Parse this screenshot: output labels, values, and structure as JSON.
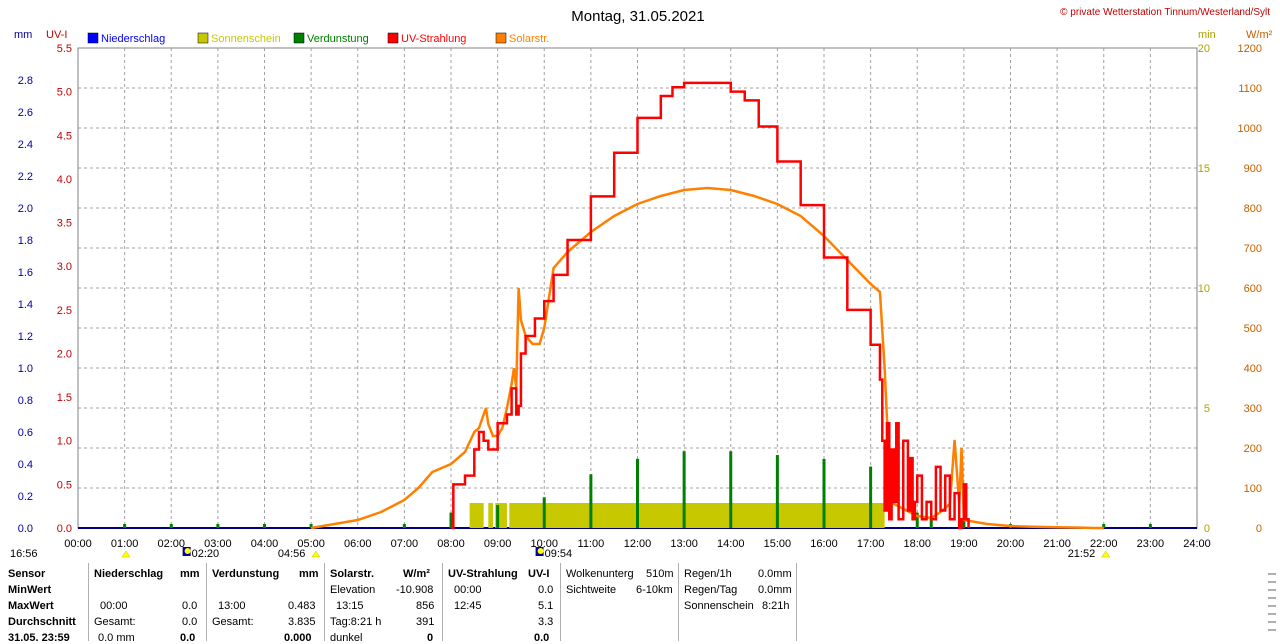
{
  "header": {
    "title": "Montag, 31.05.2021",
    "copyright": "© private Wetterstation Tinnum/Westerland/Sylt"
  },
  "units": {
    "left1": "mm",
    "left2": "UV-I",
    "right1": "min",
    "right2": "W/m²"
  },
  "colors": {
    "precip": "#0000ff",
    "sunshine": "#c8c800",
    "evap": "#008000",
    "uv": "#ff0000",
    "solar": "#ff8000",
    "grid": "#a0a0a0",
    "axis_mm": "#0000a0",
    "axis_uv": "#c00000",
    "axis_min": "#b0a000",
    "axis_wm2": "#c06000"
  },
  "legend": [
    {
      "label": "Niederschlag",
      "color": "#0000ff"
    },
    {
      "label": "Sonnenschein",
      "color": "#c8c800"
    },
    {
      "label": "Verdunstung",
      "color": "#008000"
    },
    {
      "label": "UV-Strahlung",
      "color": "#ff0000"
    },
    {
      "label": "Solarstr.",
      "color": "#ff8000"
    }
  ],
  "chart_data": {
    "type": "line",
    "x_ticks": [
      "00:00",
      "01:00",
      "02:00",
      "03:00",
      "04:00",
      "05:00",
      "06:00",
      "07:00",
      "08:00",
      "09:00",
      "10:00",
      "11:00",
      "12:00",
      "13:00",
      "14:00",
      "15:00",
      "16:00",
      "17:00",
      "18:00",
      "19:00",
      "20:00",
      "21:00",
      "22:00",
      "23:00",
      "24:00"
    ],
    "xlim": [
      0,
      24
    ],
    "axes": {
      "mm": {
        "range": [
          0,
          3.0
        ],
        "ticks": [
          "0.0",
          "0.2",
          "0.4",
          "0.6",
          "0.8",
          "1.0",
          "1.2",
          "1.4",
          "1.6",
          "1.8",
          "2.0",
          "2.2",
          "2.4",
          "2.6",
          "2.8"
        ]
      },
      "uv": {
        "range": [
          0,
          5.5
        ],
        "ticks": [
          "0.0",
          "0.5",
          "1.0",
          "1.5",
          "2.0",
          "2.5",
          "3.0",
          "3.5",
          "4.0",
          "4.5",
          "5.0",
          "5.5"
        ]
      },
      "min": {
        "range": [
          0,
          20
        ],
        "ticks": [
          "0",
          "5",
          "10",
          "15",
          "20"
        ]
      },
      "wm2": {
        "range": [
          0,
          1200
        ],
        "ticks": [
          "0",
          "100",
          "200",
          "300",
          "400",
          "500",
          "600",
          "700",
          "800",
          "900",
          "1000",
          "1100",
          "1200"
        ]
      }
    },
    "series": [
      {
        "name": "Solarstr.",
        "axis": "wm2",
        "x": [
          5.0,
          5.5,
          6.0,
          6.5,
          7.0,
          7.3,
          7.6,
          8.0,
          8.3,
          8.5,
          8.6,
          8.75,
          8.8,
          8.9,
          9.0,
          9.1,
          9.2,
          9.3,
          9.35,
          9.4,
          9.45,
          9.5,
          9.6,
          9.75,
          9.9,
          10.0,
          10.2,
          10.5,
          11.0,
          11.5,
          12.0,
          12.5,
          13.0,
          13.5,
          14.0,
          14.5,
          15.0,
          15.5,
          16.0,
          16.5,
          17.0,
          17.2,
          17.3,
          17.4,
          17.5,
          18.0,
          18.3,
          18.5,
          18.7,
          18.8,
          18.9,
          18.95,
          19.0,
          19.5,
          20.0,
          20.5,
          21.0,
          21.5,
          21.8,
          22.0
        ],
        "y": [
          0,
          10,
          20,
          40,
          70,
          100,
          140,
          160,
          190,
          240,
          250,
          300,
          260,
          230,
          230,
          250,
          300,
          360,
          400,
          350,
          600,
          520,
          480,
          460,
          460,
          500,
          650,
          690,
          740,
          780,
          810,
          830,
          845,
          850,
          845,
          830,
          810,
          780,
          730,
          670,
          610,
          590,
          400,
          150,
          60,
          30,
          25,
          40,
          60,
          220,
          60,
          200,
          20,
          10,
          5,
          3,
          2,
          1,
          0,
          0
        ]
      },
      {
        "name": "UV-Strahlung",
        "axis": "uv",
        "x": [
          8.0,
          8.05,
          8.3,
          8.5,
          8.6,
          8.7,
          8.8,
          9.0,
          9.1,
          9.2,
          9.3,
          9.4,
          9.45,
          9.5,
          9.6,
          9.8,
          10.0,
          10.2,
          10.5,
          11.0,
          11.5,
          12.0,
          12.5,
          12.75,
          13.0,
          13.5,
          13.8,
          14.0,
          14.3,
          14.6,
          15.0,
          15.5,
          16.0,
          16.5,
          17.0,
          17.2,
          17.25,
          17.3,
          17.35,
          17.4,
          17.45,
          17.5,
          17.55,
          17.6,
          17.7,
          17.8,
          17.85,
          17.9,
          17.95,
          18.0,
          18.1,
          18.2,
          18.3,
          18.4,
          18.5,
          18.6,
          18.7,
          18.8,
          18.9,
          18.95,
          19.0,
          19.05,
          19.1
        ],
        "y": [
          0,
          0.5,
          0.6,
          0.9,
          1.1,
          1.0,
          0.9,
          1.2,
          1.2,
          1.3,
          1.6,
          1.3,
          1.4,
          2.0,
          2.2,
          2.4,
          2.6,
          2.9,
          3.3,
          3.8,
          4.3,
          4.7,
          4.95,
          5.05,
          5.1,
          5.1,
          5.1,
          5.0,
          4.9,
          4.6,
          4.2,
          3.7,
          3.1,
          2.5,
          2.1,
          1.7,
          1.0,
          0.2,
          1.2,
          0.1,
          0.9,
          0.3,
          1.2,
          0.1,
          1.0,
          0.2,
          0.8,
          0.1,
          0.3,
          0.6,
          0.1,
          0.3,
          0.1,
          0.7,
          0.2,
          0.6,
          0.1,
          0.4,
          0.0,
          0.1,
          0.5,
          0.1,
          0.0
        ]
      },
      {
        "name": "Sonnenschein",
        "axis": "min",
        "bars": [
          [
            8.4,
            8.7,
            1
          ],
          [
            8.8,
            8.9,
            1
          ],
          [
            8.95,
            9.2,
            1
          ],
          [
            9.25,
            17.3,
            1
          ]
        ]
      },
      {
        "name": "Verdunstung",
        "axis": "mm",
        "spikes": [
          [
            1,
            0.01
          ],
          [
            2,
            0.01
          ],
          [
            3,
            0.01
          ],
          [
            4,
            0.01
          ],
          [
            5,
            0.01
          ],
          [
            7,
            0.01
          ],
          [
            8,
            0.04
          ],
          [
            9,
            0.06
          ],
          [
            10,
            0.08
          ],
          [
            11,
            0.14
          ],
          [
            12,
            0.18
          ],
          [
            13,
            0.2
          ],
          [
            14,
            0.2
          ],
          [
            15,
            0.19
          ],
          [
            16,
            0.18
          ],
          [
            17,
            0.16
          ],
          [
            18,
            0.04
          ],
          [
            18.3,
            0.03
          ],
          [
            19,
            0.02
          ],
          [
            20,
            0.01
          ],
          [
            22,
            0.01
          ],
          [
            23,
            0.01
          ]
        ]
      }
    ],
    "markers": [
      {
        "x": 0.0,
        "label": "16:56",
        "type": "sun-up-icon"
      },
      {
        "x": 2.33,
        "label": "02:20",
        "type": "moon-icon"
      },
      {
        "x": 4.93,
        "label": "04:56",
        "type": "sun-up-icon"
      },
      {
        "x": 9.9,
        "label": "09:54",
        "type": "moon-icon"
      },
      {
        "x": 21.87,
        "label": "21:52",
        "type": "sun-down-icon"
      }
    ]
  },
  "table": {
    "row_labels": [
      "Sensor",
      "MinWert",
      "MaxWert",
      "Durchschnitt",
      "31.05. 23:59"
    ],
    "niederschlag": {
      "head": "Niederschlag",
      "unit": "mm",
      "max_time": "00:00",
      "max": "0.0",
      "gesamt_label": "Gesamt:",
      "gesamt": "0.0",
      "now": "0.0 mm",
      "now_big": "0.0"
    },
    "verdunstung": {
      "head": "Verdunstung",
      "unit": "mm",
      "max_time": "13:00",
      "max": "0.483",
      "gesamt_label": "Gesamt:",
      "gesamt": "3.835",
      "now_big": "0.000"
    },
    "solar": {
      "head": "Solarstr.",
      "unit": "W/m²",
      "min_label": "Elevation",
      "min": "-10.908",
      "max_time": "13:15",
      "max": "856",
      "avg_label": "Tag:8:21 h",
      "avg": "391",
      "now_label": "dunkel",
      "now_big": "0"
    },
    "uv": {
      "head": "UV-Strahlung",
      "unit": "UV-I",
      "min_time": "00:00",
      "min": "0.0",
      "max_time": "12:45",
      "max": "5.1",
      "avg": "3.3",
      "now_big": "0.0"
    },
    "wolken": {
      "label1": "Wolkenunterg",
      "val1": "510m",
      "label2": "Sichtweite",
      "val2": "6-10km"
    },
    "regen": {
      "label1": "Regen/1h",
      "val1": "0.0mm",
      "label2": "Regen/Tag",
      "val2": "0.0mm",
      "label3": "Sonnenschein",
      "val3": "8:21h"
    }
  }
}
